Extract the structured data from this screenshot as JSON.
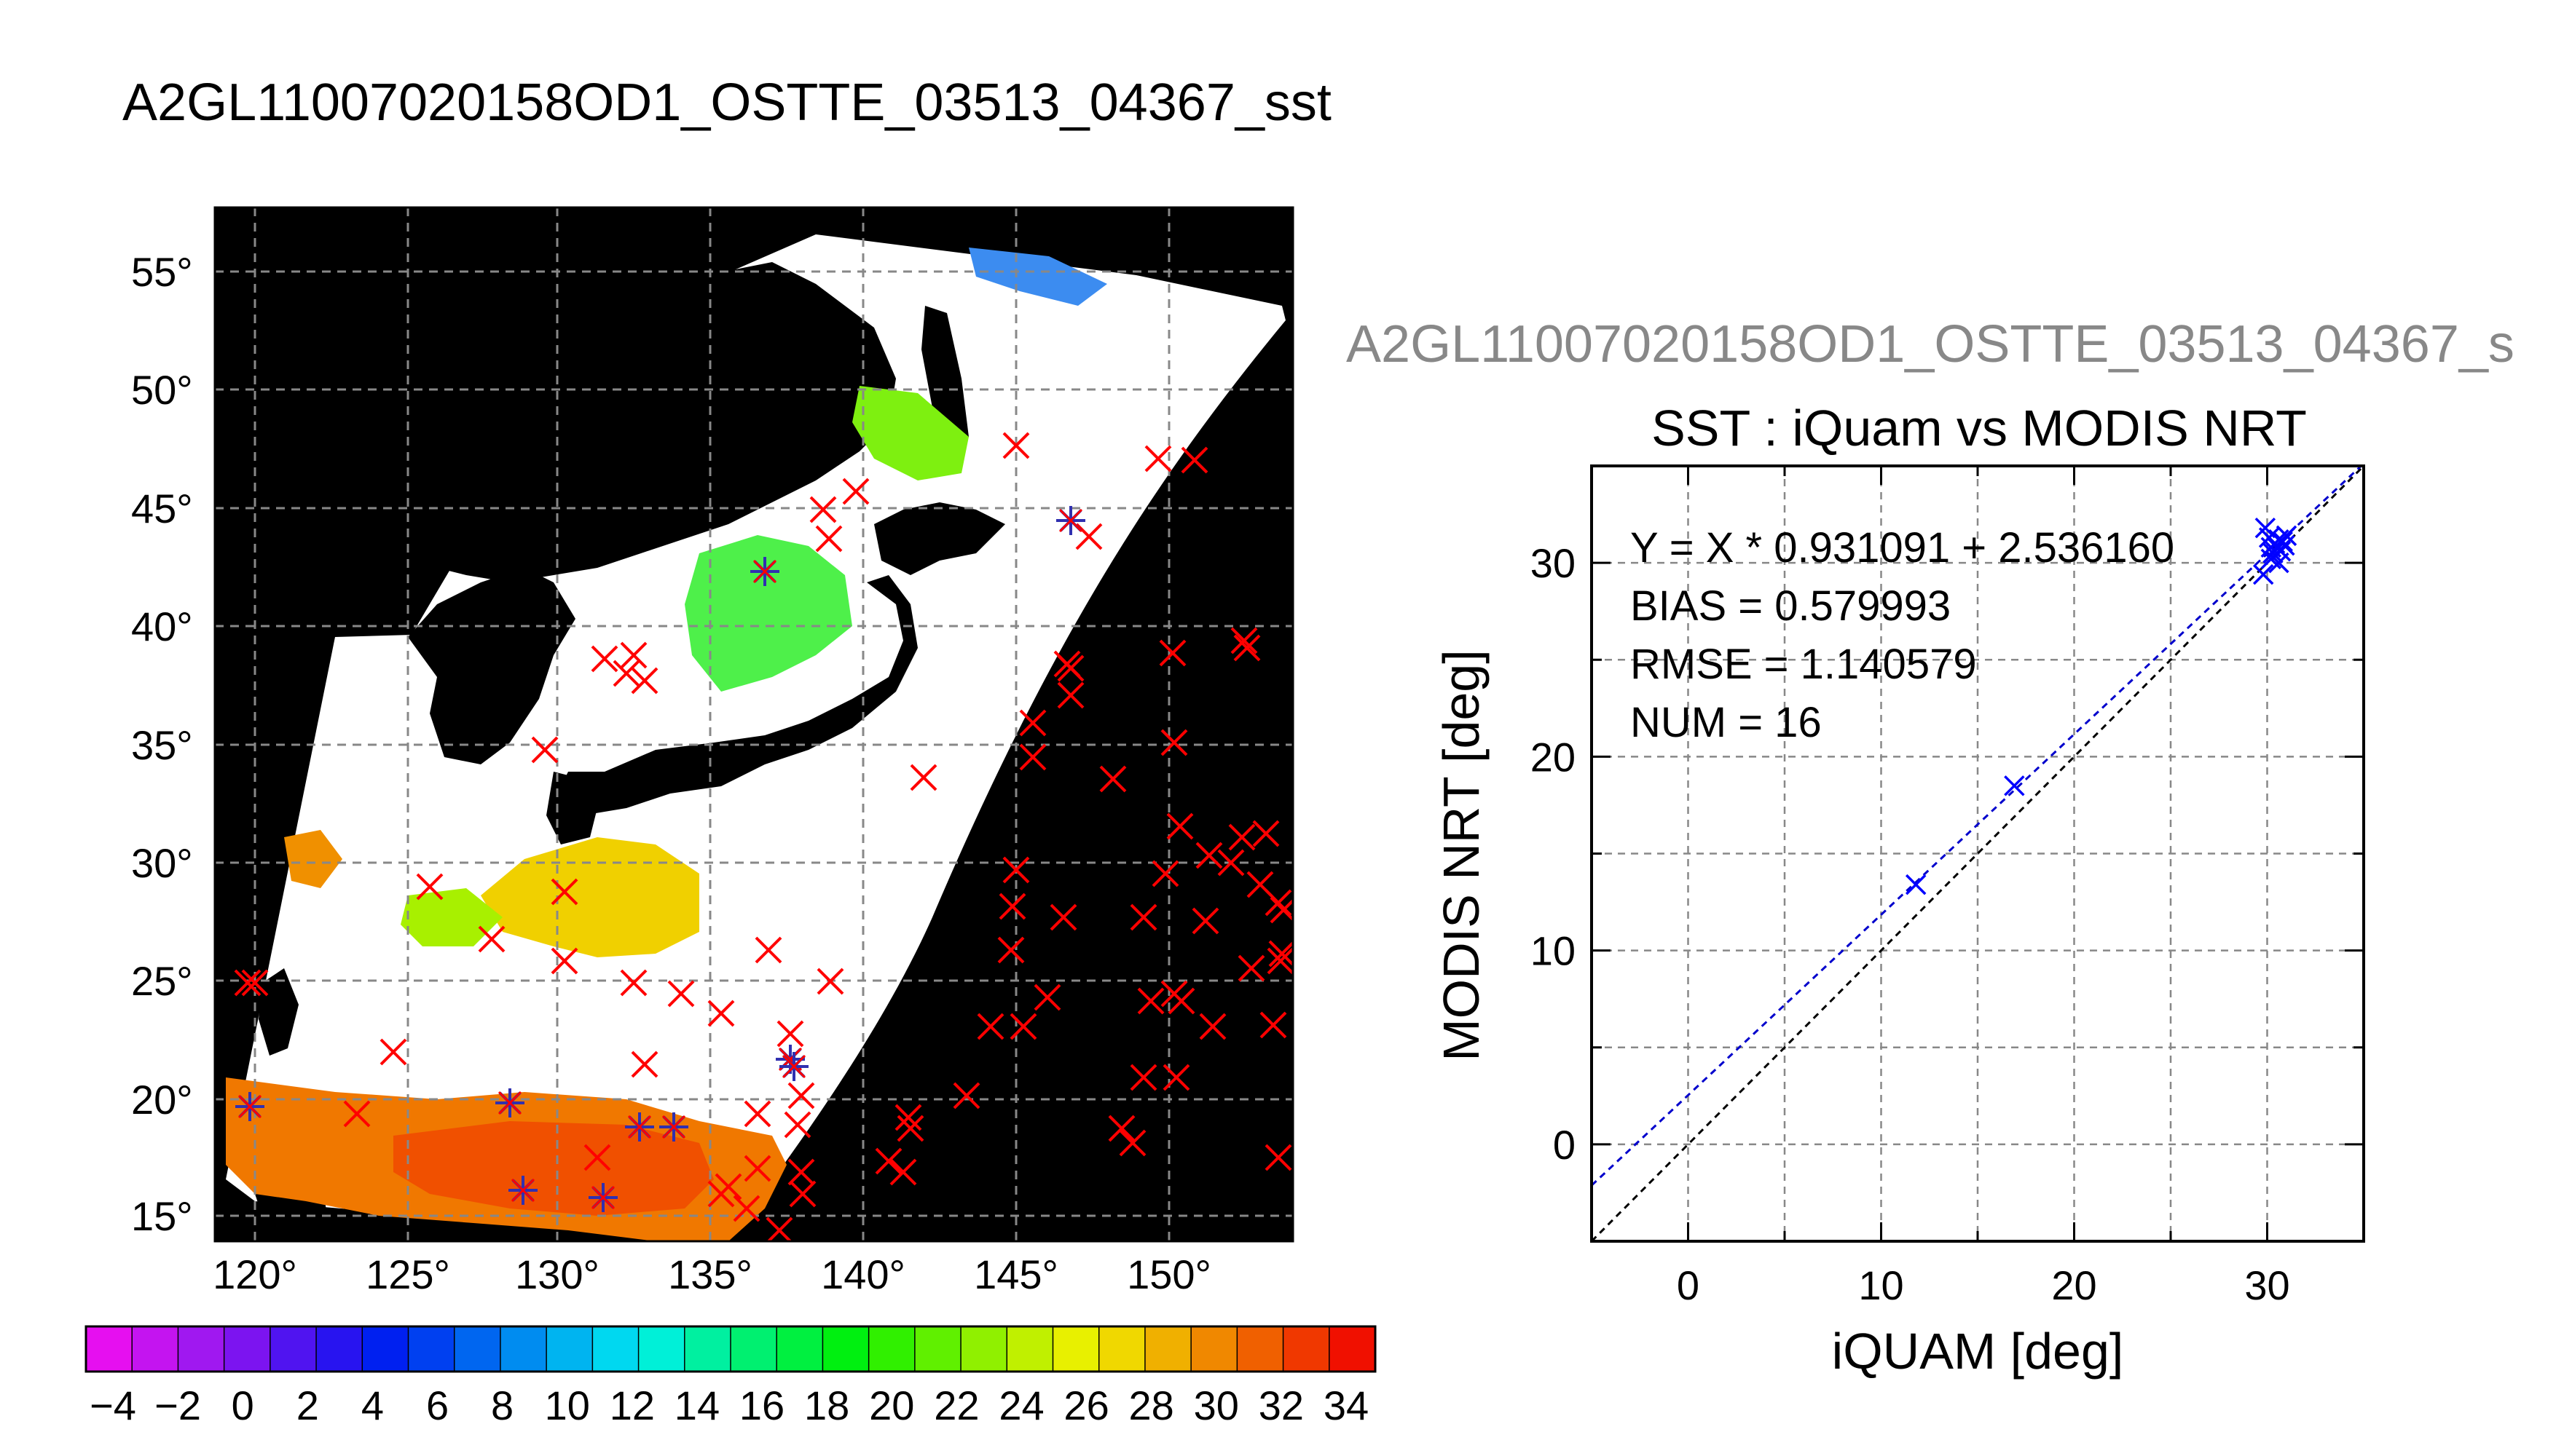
{
  "page_title": "A2GL11007020158OD1_OSTTE_03513_04367_sst",
  "colors": {
    "map_background": "#000000",
    "no_data_cloud": "#ffffff",
    "grid": "#888888",
    "match_point_cross": "#ff0000",
    "selected_point_star": "#3030b0",
    "scatter_point": "#0000ff",
    "fit_line": "#0000cc",
    "identity_line": "#000000"
  },
  "map": {
    "lat_labels": [
      "55°",
      "50°",
      "45°",
      "40°",
      "35°",
      "30°",
      "25°",
      "20°",
      "15°"
    ],
    "lon_labels": [
      "120°",
      "125°",
      "130°",
      "135°",
      "140°",
      "145°",
      "150°"
    ]
  },
  "colorbar": {
    "tick_labels": [
      "−4",
      "−2",
      "0",
      "2",
      "4",
      "6",
      "8",
      "10",
      "12",
      "14",
      "16",
      "18",
      "20",
      "22",
      "24",
      "26",
      "28",
      "30",
      "32",
      "34"
    ],
    "colors": [
      "#e60ff0",
      "#c414f0",
      "#a018f0",
      "#7c14f0",
      "#5014f0",
      "#2814f0",
      "#0020f0",
      "#0040f0",
      "#0066f0",
      "#008cf0",
      "#00b4f0",
      "#00d8f0",
      "#00f0d8",
      "#00f0a0",
      "#00f070",
      "#00f040",
      "#00f010",
      "#30f000",
      "#60f000",
      "#90f000",
      "#c0f000",
      "#e8f000",
      "#f0d800",
      "#f0b000",
      "#f08800",
      "#f06000",
      "#f03800",
      "#f01000"
    ]
  },
  "chart_data": {
    "type": "scatter",
    "figure_label": "A2GL11007020158OD1_OSTTE_03513_04367_s",
    "title": "SST : iQuam vs MODIS NRT",
    "xlabel": "iQUAM [deg]",
    "ylabel": "MODIS NRT [deg]",
    "xlim": [
      -5,
      35
    ],
    "ylim": [
      -5,
      35
    ],
    "x_ticks": [
      0,
      10,
      20,
      30
    ],
    "y_ticks": [
      0,
      10,
      20,
      30
    ],
    "grid": true,
    "stats": [
      "Y = X * 0.931091 + 2.536160",
      "BIAS = 0.579993",
      "RMSE = 1.140579",
      "NUM = 16"
    ],
    "fit": {
      "slope": 0.931091,
      "intercept": 2.53616
    },
    "points": [
      {
        "x": 11.8,
        "y": 13.4
      },
      {
        "x": 16.9,
        "y": 18.5
      },
      {
        "x": 29.8,
        "y": 29.4
      },
      {
        "x": 29.9,
        "y": 31.8
      },
      {
        "x": 30.1,
        "y": 31.3
      },
      {
        "x": 30.2,
        "y": 30.8
      },
      {
        "x": 30.3,
        "y": 30.5
      },
      {
        "x": 30.4,
        "y": 31.0
      },
      {
        "x": 30.5,
        "y": 30.8
      },
      {
        "x": 30.6,
        "y": 31.2
      },
      {
        "x": 30.7,
        "y": 30.6
      },
      {
        "x": 30.8,
        "y": 31.1
      },
      {
        "x": 30.9,
        "y": 30.9
      },
      {
        "x": 31.0,
        "y": 31.4
      },
      {
        "x": 30.2,
        "y": 30.2
      },
      {
        "x": 30.6,
        "y": 30.0
      }
    ]
  }
}
